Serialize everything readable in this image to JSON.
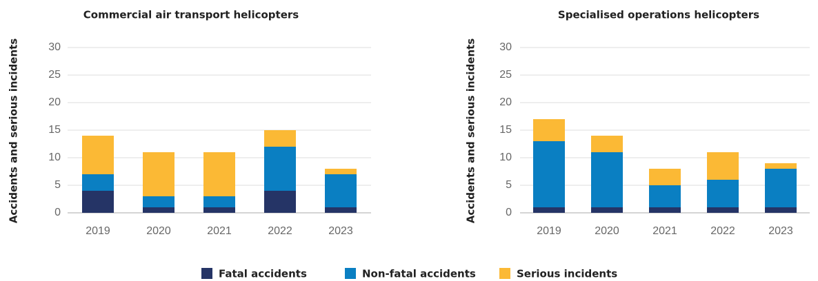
{
  "chart_data": [
    {
      "type": "bar",
      "stacked": true,
      "title": "Commercial air transport helicopters",
      "y_label": "Accidents and serious incidents",
      "categories": [
        "2019",
        "2020",
        "2021",
        "2022",
        "2023"
      ],
      "series": [
        {
          "name": "Fatal accidents",
          "color": "#253466",
          "values": [
            4,
            1,
            1,
            4,
            1
          ]
        },
        {
          "name": "Non-fatal accidents",
          "color": "#0a7fc2",
          "values": [
            3,
            2,
            2,
            8,
            6
          ]
        },
        {
          "name": "Serious incidents",
          "color": "#fbb935",
          "values": [
            7,
            8,
            8,
            3,
            1
          ]
        }
      ],
      "ylim": [
        0,
        30
      ],
      "yticks": [
        0,
        5,
        10,
        15,
        20,
        25,
        30
      ],
      "grid": true
    },
    {
      "type": "bar",
      "stacked": true,
      "title": "Specialised operations helicopters",
      "y_label": "Accidents and serious incidents",
      "categories": [
        "2019",
        "2020",
        "2021",
        "2022",
        "2023"
      ],
      "series": [
        {
          "name": "Fatal accidents",
          "color": "#253466",
          "values": [
            1,
            1,
            1,
            1,
            1
          ]
        },
        {
          "name": "Non-fatal accidents",
          "color": "#0a7fc2",
          "values": [
            12,
            10,
            4,
            5,
            7
          ]
        },
        {
          "name": "Serious incidents",
          "color": "#fbb935",
          "values": [
            4,
            3,
            3,
            5,
            1
          ]
        }
      ],
      "ylim": [
        0,
        30
      ],
      "yticks": [
        0,
        5,
        10,
        15,
        20,
        25,
        30
      ],
      "grid": true
    }
  ]
}
